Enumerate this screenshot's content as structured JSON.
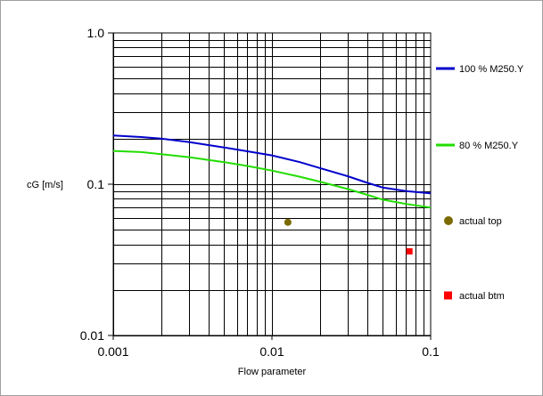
{
  "chart_data": {
    "type": "line",
    "xlabel": "Flow parameter",
    "ylabel": "cG [m/s]",
    "xscale": "log",
    "yscale": "log",
    "xlim": [
      0.001,
      0.1
    ],
    "ylim": [
      0.01,
      1.0
    ],
    "grid": true,
    "legend_position": "right",
    "x_tick_labels": [
      "0.001",
      "0.01",
      "0.1"
    ],
    "y_tick_labels": [
      "0.01",
      "0.1",
      "1.0"
    ],
    "series": [
      {
        "name": "100 % M250.Y",
        "color": "#0000cc",
        "marker": "line",
        "x": [
          0.001,
          0.0015,
          0.002,
          0.003,
          0.005,
          0.007,
          0.01,
          0.015,
          0.02,
          0.03,
          0.04,
          0.05,
          0.07,
          0.1
        ],
        "y": [
          0.21,
          0.205,
          0.2,
          0.19,
          0.175,
          0.165,
          0.155,
          0.14,
          0.128,
          0.113,
          0.102,
          0.095,
          0.09,
          0.087
        ]
      },
      {
        "name": "80 % M250.Y",
        "color": "#22dd00",
        "marker": "line",
        "x": [
          0.001,
          0.0015,
          0.002,
          0.003,
          0.005,
          0.007,
          0.01,
          0.015,
          0.02,
          0.03,
          0.04,
          0.05,
          0.07,
          0.1
        ],
        "y": [
          0.166,
          0.163,
          0.158,
          0.151,
          0.14,
          0.132,
          0.123,
          0.112,
          0.104,
          0.093,
          0.085,
          0.079,
          0.074,
          0.07
        ]
      },
      {
        "name": "actual top",
        "color": "#7a6a00",
        "marker": "circle",
        "x": [
          0.0126
        ],
        "y": [
          0.056
        ]
      },
      {
        "name": "actual btm",
        "color": "#ff0000",
        "marker": "square",
        "x": [
          0.0735
        ],
        "y": [
          0.036
        ]
      }
    ]
  }
}
